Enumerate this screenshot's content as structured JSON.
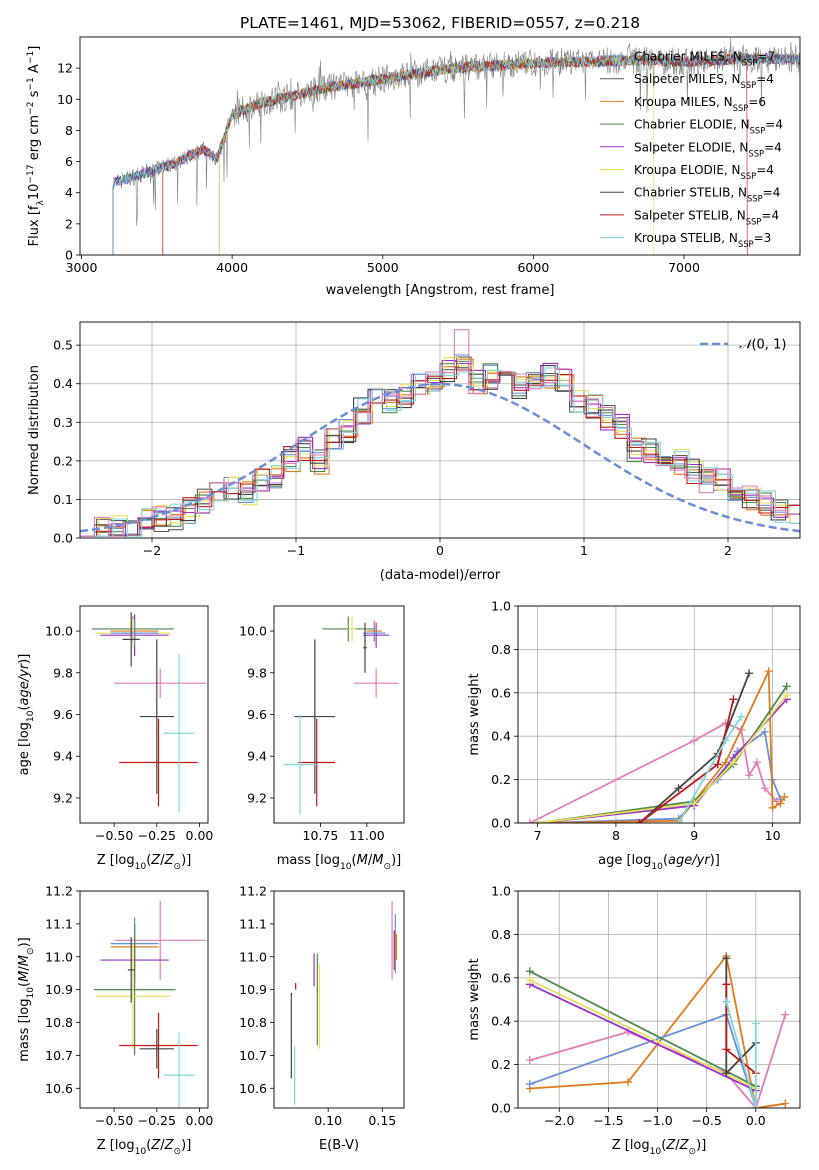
{
  "title": "PLATE=1461, MJD=53062, FIBERID=0557, z=0.218",
  "colors": {
    "chabrier_miles": "#6b8fd6",
    "salpeter_miles": "#5a5a5a",
    "kroupa_miles": "#e07b1a",
    "chabrier_elodie": "#4f8a4f",
    "salpeter_elodie": "#9b30c9",
    "kroupa_elodie": "#e6e05a",
    "chabrier_stelib": "#444444",
    "salpeter_stelib": "#c01818",
    "kroupa_stelib": "#7fd8dc",
    "extra_pink": "#e07fba",
    "normal_curve": "#6b8fd6",
    "grid": "#b0b0b0"
  },
  "chart_data": [
    {
      "id": "spectrum",
      "type": "line",
      "xlabel": "wavelength [Angstrom, rest frame]",
      "ylabel": "Flux [f_λ 10^-17 erg cm^-2 s^-1 A^-1]",
      "xlim": [
        2990,
        7770
      ],
      "ylim": [
        0,
        14
      ],
      "xticks": [
        3000,
        4000,
        5000,
        6000,
        7000
      ],
      "yticks": [
        0,
        2,
        4,
        6,
        8,
        10,
        12
      ],
      "grid": false,
      "legend_position": "upper right",
      "legend": [
        {
          "label": "Chabrier MILES, N",
          "sub": "SSP",
          "suffix": "=7",
          "color_key": "chabrier_miles"
        },
        {
          "label": "Salpeter MILES, N",
          "sub": "SSP",
          "suffix": "=4",
          "color_key": "salpeter_miles"
        },
        {
          "label": "Kroupa MILES, N",
          "sub": "SSP",
          "suffix": "=6",
          "color_key": "kroupa_miles"
        },
        {
          "label": "Chabrier ELODIE, N",
          "sub": "SSP",
          "suffix": "=4",
          "color_key": "chabrier_elodie"
        },
        {
          "label": "Salpeter ELODIE, N",
          "sub": "SSP",
          "suffix": "=4",
          "color_key": "salpeter_elodie"
        },
        {
          "label": "Kroupa ELODIE, N",
          "sub": "SSP",
          "suffix": "=4",
          "color_key": "kroupa_elodie"
        },
        {
          "label": "Chabrier STELIB, N",
          "sub": "SSP",
          "suffix": "=4",
          "color_key": "chabrier_stelib"
        },
        {
          "label": "Salpeter STELIB, N",
          "sub": "SSP",
          "suffix": "=4",
          "color_key": "salpeter_stelib"
        },
        {
          "label": "Kroupa STELIB, N",
          "sub": "SSP",
          "suffix": "=3",
          "color_key": "kroupa_stelib"
        }
      ],
      "continuum": [
        [
          3210,
          4.6
        ],
        [
          3400,
          5.2
        ],
        [
          3600,
          5.8
        ],
        [
          3800,
          6.8
        ],
        [
          3900,
          6.2
        ],
        [
          4000,
          9.0
        ],
        [
          4200,
          9.8
        ],
        [
          4400,
          10.2
        ],
        [
          4600,
          10.7
        ],
        [
          4800,
          11.0
        ],
        [
          5000,
          11.3
        ],
        [
          5200,
          11.6
        ],
        [
          5400,
          11.9
        ],
        [
          5600,
          12.1
        ],
        [
          5800,
          12.2
        ],
        [
          6000,
          12.3
        ],
        [
          6200,
          12.4
        ],
        [
          6400,
          12.4
        ],
        [
          6600,
          12.5
        ],
        [
          6800,
          12.5
        ],
        [
          7000,
          12.4
        ],
        [
          7200,
          12.5
        ],
        [
          7400,
          12.6
        ],
        [
          7770,
          12.6
        ]
      ],
      "model_starts": [
        {
          "color_key": "kroupa_stelib",
          "start": 3210
        },
        {
          "color_key": "chabrier_stelib",
          "start": 3210
        },
        {
          "color_key": "salpeter_stelib",
          "start": 3540
        },
        {
          "color_key": "kroupa_miles",
          "start": 3540
        },
        {
          "color_key": "chabrier_elodie",
          "start": 3915
        },
        {
          "color_key": "kroupa_elodie",
          "start": 3915
        }
      ],
      "model_ends": [
        {
          "color_key": "kroupa_elodie",
          "end": 6800
        },
        {
          "color_key": "salpeter_stelib",
          "end": 7420
        }
      ]
    },
    {
      "id": "residuals",
      "type": "histogram",
      "xlabel": "(data-model)/error",
      "ylabel": "Normed distribution",
      "xlim": [
        -2.5,
        2.5
      ],
      "ylim": [
        0,
        0.56
      ],
      "xticks": [
        -2,
        -1,
        0,
        1,
        2
      ],
      "yticks": [
        0.0,
        0.1,
        0.2,
        0.3,
        0.4,
        0.5
      ],
      "grid": true,
      "legend": [
        {
          "label": "N(0,1)",
          "color_key": "normal_curve"
        }
      ],
      "bin_width": 0.1,
      "bin_start": -2.5,
      "envelope": [
        0.03,
        0.025,
        0.03,
        0.03,
        0.045,
        0.05,
        0.055,
        0.07,
        0.095,
        0.11,
        0.13,
        0.12,
        0.145,
        0.16,
        0.205,
        0.23,
        0.2,
        0.25,
        0.28,
        0.33,
        0.355,
        0.35,
        0.37,
        0.4,
        0.4,
        0.44,
        0.45,
        0.4,
        0.42,
        0.405,
        0.395,
        0.42,
        0.42,
        0.41,
        0.36,
        0.345,
        0.31,
        0.29,
        0.225,
        0.225,
        0.2,
        0.195,
        0.17,
        0.15,
        0.145,
        0.115,
        0.1,
        0.09,
        0.07,
        0.06,
        0.04,
        0.035,
        0.03,
        0.025,
        0.03
      ],
      "normal_curve": {
        "mean": 0,
        "sigma": 1
      }
    },
    {
      "id": "age_vs_Z",
      "type": "errorbar",
      "xlabel": "Z [log10(Z/Z⊙)]",
      "ylabel": "age [log10(age/yr)]",
      "xlim": [
        -0.7,
        0.05
      ],
      "ylim": [
        9.08,
        10.12
      ],
      "xticks": [
        -0.5,
        -0.25,
        0.0
      ],
      "yticks": [
        9.2,
        9.4,
        9.6,
        9.8,
        10.0
      ],
      "points": [
        {
          "color_key": "chabrier_elodie",
          "x": -0.39,
          "y": 10.01,
          "xerr": 0.24,
          "yerr": 0.06
        },
        {
          "color_key": "kroupa_miles",
          "x": -0.38,
          "y": 10.0,
          "xerr": 0.14,
          "yerr": 0.05
        },
        {
          "color_key": "salpeter_elodie",
          "x": -0.38,
          "y": 9.98,
          "xerr": 0.2,
          "yerr": 0.1
        },
        {
          "color_key": "kroupa_elodie",
          "x": -0.39,
          "y": 9.99,
          "xerr": 0.22,
          "yerr": 0.07
        },
        {
          "color_key": "chabrier_miles",
          "x": -0.38,
          "y": 9.99,
          "xerr": 0.14,
          "yerr": 0.06
        },
        {
          "color_key": "chabrier_stelib",
          "x": -0.4,
          "y": 9.96,
          "xerr": 0.05,
          "yerr": 0.13
        },
        {
          "color_key": "extra_pink",
          "x": -0.23,
          "y": 9.75,
          "xerr": 0.27,
          "yerr": 0.07
        },
        {
          "color_key": "salpeter_stelib",
          "x": -0.24,
          "y": 9.37,
          "xerr": 0.23,
          "yerr": 0.21
        },
        {
          "color_key": "chabrier_stelib",
          "x": -0.25,
          "y": 9.59,
          "xerr": 0.1,
          "yerr": 0.37
        },
        {
          "color_key": "kroupa_stelib",
          "x": -0.12,
          "y": 9.51,
          "xerr": 0.09,
          "yerr": 0.38
        }
      ]
    },
    {
      "id": "age_vs_mass",
      "type": "errorbar",
      "xlabel": "mass [log10(M/M⊙)]",
      "ylabel": "",
      "xlim": [
        10.5,
        11.2
      ],
      "ylim": [
        9.08,
        10.12
      ],
      "xticks": [
        10.75,
        11.0
      ],
      "yticks": [
        9.2,
        9.4,
        9.6,
        9.8,
        10.0
      ],
      "points": [
        {
          "color_key": "chabrier_elodie",
          "x": 10.9,
          "y": 10.01,
          "xerr": 0.14,
          "yerr": 0.06
        },
        {
          "color_key": "kroupa_elodie",
          "x": 10.92,
          "y": 10.01,
          "xerr": 0.02,
          "yerr": 0.06
        },
        {
          "color_key": "salpeter_elodie",
          "x": 11.05,
          "y": 9.98,
          "xerr": 0.07,
          "yerr": 0.06
        },
        {
          "color_key": "kroupa_miles",
          "x": 11.04,
          "y": 10.0,
          "xerr": 0.04,
          "yerr": 0.05
        },
        {
          "color_key": "chabrier_miles",
          "x": 11.04,
          "y": 9.99,
          "xerr": 0.06,
          "yerr": 0.04
        },
        {
          "color_key": "chabrier_stelib",
          "x": 10.99,
          "y": 9.92,
          "xerr": 0.01,
          "yerr": 0.12
        },
        {
          "color_key": "extra_pink",
          "x": 11.05,
          "y": 9.75,
          "xerr": 0.12,
          "yerr": 0.07
        },
        {
          "color_key": "salpeter_stelib",
          "x": 10.73,
          "y": 9.37,
          "xerr": 0.1,
          "yerr": 0.21
        },
        {
          "color_key": "chabrier_stelib",
          "x": 10.72,
          "y": 9.59,
          "xerr": 0.11,
          "yerr": 0.37
        },
        {
          "color_key": "kroupa_stelib",
          "x": 10.64,
          "y": 9.36,
          "xerr": 0.09,
          "yerr": 0.24
        }
      ]
    },
    {
      "id": "mass_weight_vs_age",
      "type": "line",
      "xlabel": "age [log10(age/yr)]",
      "ylabel": "mass weight",
      "xlim": [
        6.75,
        10.35
      ],
      "ylim": [
        0,
        1.0
      ],
      "xticks": [
        7,
        8,
        9,
        10
      ],
      "yticks": [
        0.0,
        0.2,
        0.4,
        0.6,
        0.8,
        1.0
      ],
      "grid": true,
      "series": [
        {
          "color_key": "extra_pink",
          "x": [
            6.9,
            9.0,
            9.4,
            9.6,
            9.7,
            9.8,
            9.9,
            10.05
          ],
          "y": [
            0.0,
            0.38,
            0.46,
            0.43,
            0.22,
            0.28,
            0.16,
            0.1
          ]
        },
        {
          "color_key": "chabrier_miles",
          "x": [
            7.0,
            8.8,
            9.0,
            9.3,
            9.55,
            9.9,
            10.0,
            10.1
          ],
          "y": [
            0.0,
            0.02,
            0.1,
            0.2,
            0.33,
            0.42,
            0.2,
            0.11
          ]
        },
        {
          "color_key": "kroupa_miles",
          "x": [
            7.0,
            8.8,
            9.4,
            9.95,
            10.0,
            10.1,
            10.15
          ],
          "y": [
            0.0,
            0.01,
            0.28,
            0.7,
            0.07,
            0.09,
            0.12
          ]
        },
        {
          "color_key": "chabrier_elodie",
          "x": [
            7.0,
            9.0,
            9.5,
            10.18
          ],
          "y": [
            0.0,
            0.1,
            0.27,
            0.63
          ]
        },
        {
          "color_key": "salpeter_elodie",
          "x": [
            7.0,
            9.0,
            9.5,
            10.18
          ],
          "y": [
            0.0,
            0.08,
            0.3,
            0.57
          ]
        },
        {
          "color_key": "kroupa_elodie",
          "x": [
            7.0,
            9.0,
            9.5,
            10.18
          ],
          "y": [
            0.0,
            0.09,
            0.28,
            0.59
          ]
        },
        {
          "color_key": "chabrier_stelib",
          "x": [
            8.3,
            8.8,
            9.3,
            9.7
          ],
          "y": [
            0.0,
            0.16,
            0.32,
            0.69
          ]
        },
        {
          "color_key": "salpeter_stelib",
          "x": [
            8.3,
            9.3,
            9.5
          ],
          "y": [
            0.0,
            0.27,
            0.57
          ]
        },
        {
          "color_key": "kroupa_stelib",
          "x": [
            8.8,
            9.4,
            9.6
          ],
          "y": [
            0.0,
            0.38,
            0.49
          ]
        }
      ]
    },
    {
      "id": "mass_vs_Z",
      "type": "errorbar",
      "xlabel": "Z [log10(Z/Z⊙)]",
      "ylabel": "mass [log10(M/M⊙)]",
      "xlim": [
        -0.7,
        0.05
      ],
      "ylim": [
        10.54,
        11.2
      ],
      "xticks": [
        -0.5,
        -0.25,
        0.0
      ],
      "yticks": [
        10.6,
        10.7,
        10.8,
        10.9,
        11.0,
        11.1,
        11.2
      ],
      "points": [
        {
          "color_key": "chabrier_miles",
          "x": -0.38,
          "y": 11.04,
          "xerr": 0.14,
          "yerr": 0.08
        },
        {
          "color_key": "extra_pink",
          "x": -0.23,
          "y": 11.05,
          "xerr": 0.27,
          "yerr": 0.12
        },
        {
          "color_key": "kroupa_miles",
          "x": -0.38,
          "y": 11.03,
          "xerr": 0.14,
          "yerr": 0.04
        },
        {
          "color_key": "salpeter_elodie",
          "x": -0.38,
          "y": 10.99,
          "xerr": 0.2,
          "yerr": 0.07
        },
        {
          "color_key": "chabrier_elodie",
          "x": -0.38,
          "y": 10.9,
          "xerr": 0.24,
          "yerr": 0.2
        },
        {
          "color_key": "kroupa_elodie",
          "x": -0.39,
          "y": 10.88,
          "xerr": 0.22,
          "yerr": 0.16
        },
        {
          "color_key": "chabrier_stelib",
          "x": -0.4,
          "y": 10.96,
          "xerr": 0.02,
          "yerr": 0.1
        },
        {
          "color_key": "salpeter_stelib",
          "x": -0.24,
          "y": 10.73,
          "xerr": 0.23,
          "yerr": 0.1
        },
        {
          "color_key": "chabrier_stelib",
          "x": -0.25,
          "y": 10.72,
          "xerr": 0.1,
          "yerr": 0.06
        },
        {
          "color_key": "kroupa_stelib",
          "x": -0.12,
          "y": 10.64,
          "xerr": 0.09,
          "yerr": 0.13
        }
      ]
    },
    {
      "id": "mass_vs_ebv",
      "type": "errorbar",
      "xlabel": "E(B-V)",
      "ylabel": "",
      "xlim": [
        0.05,
        0.17
      ],
      "ylim": [
        10.54,
        11.2
      ],
      "xticks": [
        0.1,
        0.15
      ],
      "yticks": [
        10.6,
        10.7,
        10.8,
        10.9,
        11.0,
        11.1,
        11.2
      ],
      "points": [
        {
          "color_key": "chabrier_stelib",
          "x": 0.066,
          "y": 10.76,
          "xerr": 0.0,
          "yerr": 0.13
        },
        {
          "color_key": "kroupa_stelib",
          "x": 0.069,
          "y": 10.64,
          "xerr": 0.0,
          "yerr": 0.09
        },
        {
          "color_key": "salpeter_stelib",
          "x": 0.07,
          "y": 10.91,
          "xerr": 0.0,
          "yerr": 0.01
        },
        {
          "color_key": "chabrier_elodie",
          "x": 0.09,
          "y": 10.87,
          "xerr": 0.0,
          "yerr": 0.14
        },
        {
          "color_key": "salpeter_elodie",
          "x": 0.087,
          "y": 10.96,
          "xerr": 0.0,
          "yerr": 0.05
        },
        {
          "color_key": "kroupa_elodie",
          "x": 0.092,
          "y": 10.85,
          "xerr": 0.0,
          "yerr": 0.13
        },
        {
          "color_key": "extra_pink",
          "x": 0.159,
          "y": 11.05,
          "xerr": 0.0,
          "yerr": 0.12
        },
        {
          "color_key": "salpeter_stelib",
          "x": 0.161,
          "y": 11.02,
          "xerr": 0.0,
          "yerr": 0.06
        },
        {
          "color_key": "chabrier_miles",
          "x": 0.162,
          "y": 11.04,
          "xerr": 0.0,
          "yerr": 0.09
        },
        {
          "color_key": "kroupa_miles",
          "x": 0.163,
          "y": 11.03,
          "xerr": 0.0,
          "yerr": 0.04
        }
      ]
    },
    {
      "id": "mass_weight_vs_Z",
      "type": "line",
      "xlabel": "Z [log10(Z/Z⊙)]",
      "ylabel": "mass weight",
      "xlim": [
        -2.42,
        0.45
      ],
      "ylim": [
        0,
        1.0
      ],
      "xticks": [
        -2.0,
        -1.5,
        -1.0,
        -0.5,
        0.0
      ],
      "yticks": [
        0.0,
        0.2,
        0.4,
        0.6,
        0.8,
        1.0
      ],
      "grid": true,
      "series": [
        {
          "color_key": "kroupa_miles",
          "x": [
            -2.3,
            -1.3,
            -0.3,
            0.0,
            0.3
          ],
          "y": [
            0.09,
            0.12,
            0.7,
            0.0,
            0.02
          ]
        },
        {
          "color_key": "chabrier_miles",
          "x": [
            -2.3,
            -0.3,
            0.0,
            0.0
          ],
          "y": [
            0.11,
            0.43,
            0.0,
            0.1
          ]
        },
        {
          "color_key": "extra_pink",
          "x": [
            -2.3,
            -1.3,
            -0.3,
            0.0,
            0.3
          ],
          "y": [
            0.22,
            0.35,
            0.16,
            0.0,
            0.43
          ]
        },
        {
          "color_key": "chabrier_elodie",
          "x": [
            -2.3,
            0.0
          ],
          "y": [
            0.63,
            0.1
          ]
        },
        {
          "color_key": "salpeter_elodie",
          "x": [
            -2.3,
            0.0
          ],
          "y": [
            0.57,
            0.08
          ]
        },
        {
          "color_key": "kroupa_elodie",
          "x": [
            -2.3,
            0.0
          ],
          "y": [
            0.59,
            0.09
          ]
        },
        {
          "color_key": "chabrier_stelib",
          "x": [
            -0.3,
            -0.3,
            0.0
          ],
          "y": [
            0.69,
            0.16,
            0.3
          ]
        },
        {
          "color_key": "salpeter_stelib",
          "x": [
            -0.3,
            -0.3,
            0.0
          ],
          "y": [
            0.57,
            0.27,
            0.16
          ]
        },
        {
          "color_key": "kroupa_stelib",
          "x": [
            -0.3,
            0.0,
            0.0
          ],
          "y": [
            0.49,
            0.0,
            0.39
          ]
        }
      ]
    }
  ]
}
